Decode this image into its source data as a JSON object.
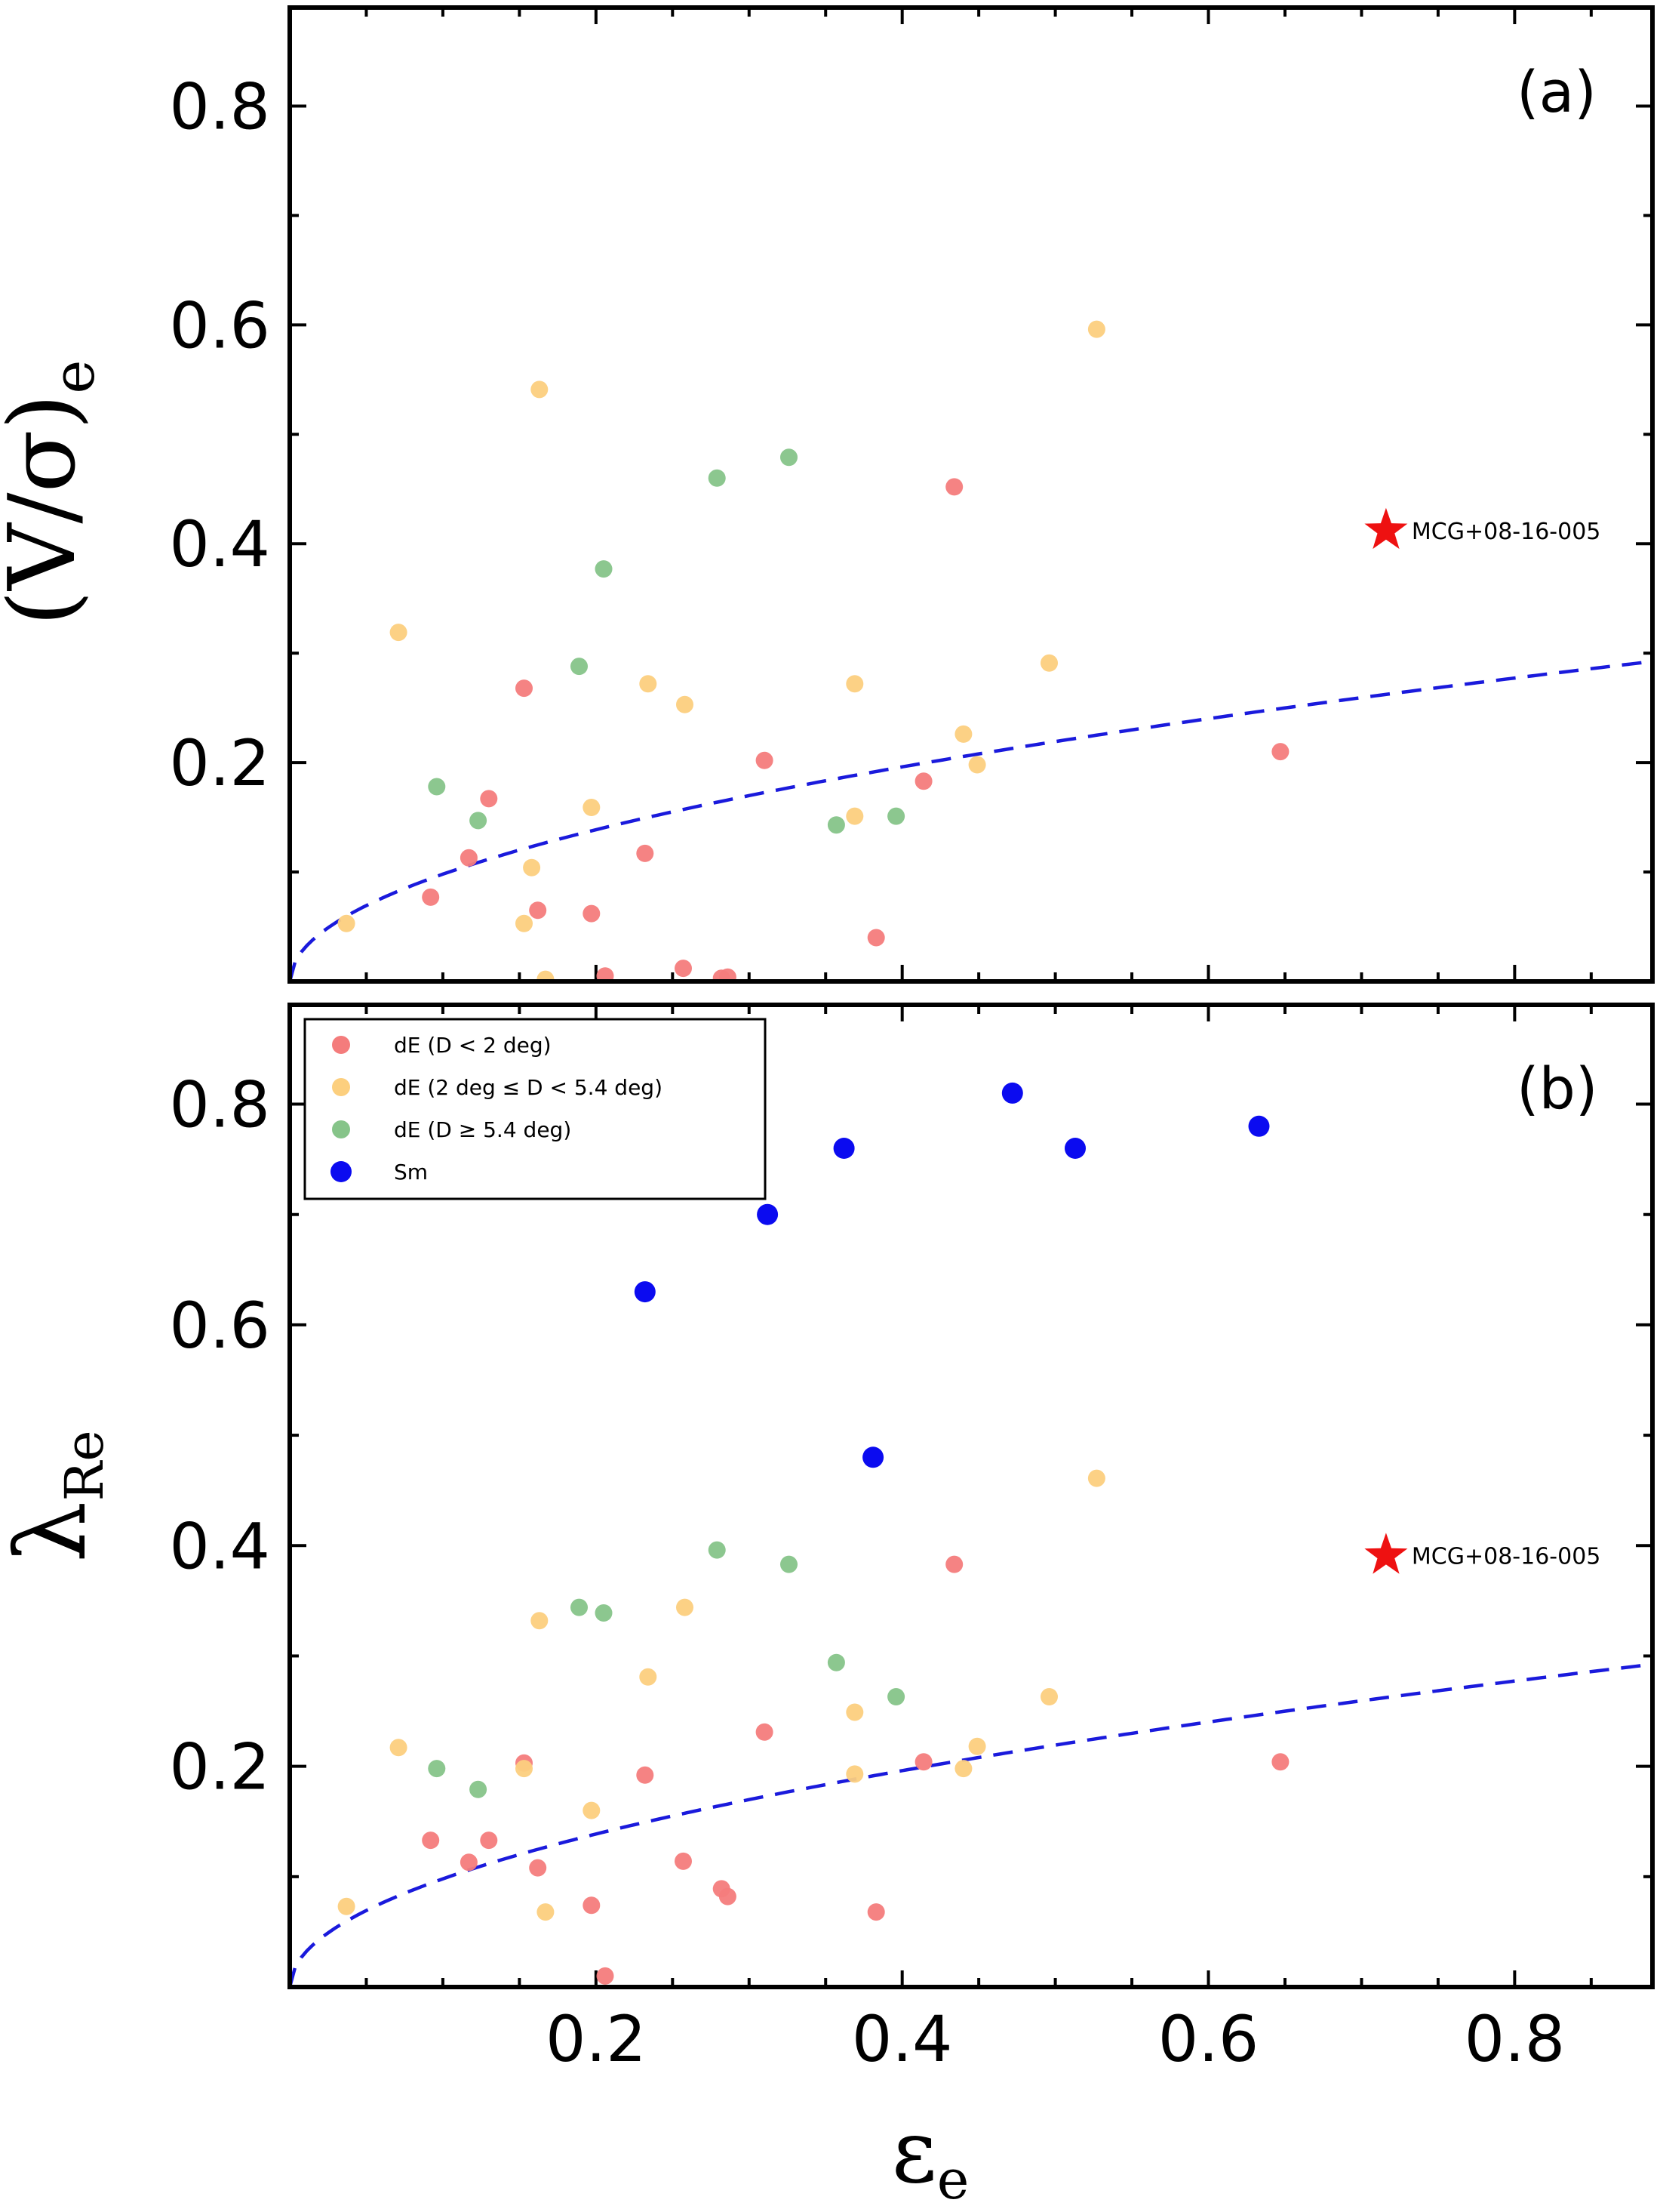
{
  "colors": {
    "red": "#f47c7c",
    "orange": "#fccf7e",
    "green": "#86c489",
    "blue": "#0b0bf0",
    "star": "#ee1111",
    "line": "#1a1adc"
  },
  "xaxis": {
    "label_base": "ε",
    "label_sub": "e",
    "ticks": [
      0.2,
      0.4,
      0.6,
      0.8
    ],
    "tick_labels": [
      "0.2",
      "0.4",
      "0.6",
      "0.8"
    ],
    "minor_ticks": [
      0.05,
      0.1,
      0.15,
      0.25,
      0.3,
      0.35,
      0.45,
      0.5,
      0.55,
      0.65,
      0.7,
      0.75,
      0.85
    ],
    "range": [
      0,
      0.89
    ]
  },
  "legend": {
    "entries": [
      {
        "label": "dE (D < 2 deg)",
        "color": "red"
      },
      {
        "label": "dE (2 deg ≤ D < 5.4 deg)",
        "color": "orange"
      },
      {
        "label": "dE (D ≥ 5.4 deg)",
        "color": "green"
      },
      {
        "label": "Sm",
        "color": "blue"
      }
    ]
  },
  "chart_data": [
    {
      "type": "scatter",
      "panel_label": "(a)",
      "ylabel": "(V/σ)",
      "ylabel_sub": "e",
      "ylim": [
        0,
        0.89
      ],
      "yticks": [
        0.2,
        0.4,
        0.6,
        0.8
      ],
      "ytick_labels": [
        "0.2",
        "0.4",
        "0.6",
        "0.8"
      ],
      "yminor": [
        0.1,
        0.3,
        0.5,
        0.7
      ],
      "series": [
        {
          "name": "dE (D < 2 deg)",
          "color": "red",
          "points": [
            [
              0.092,
              0.077
            ],
            [
              0.117,
              0.113
            ],
            [
              0.13,
              0.167
            ],
            [
              0.153,
              0.268
            ],
            [
              0.162,
              0.065
            ],
            [
              0.197,
              0.062
            ],
            [
              0.206,
              0.005
            ],
            [
              0.232,
              0.117
            ],
            [
              0.257,
              0.012
            ],
            [
              0.282,
              0.003
            ],
            [
              0.286,
              0.004
            ],
            [
              0.31,
              0.202
            ],
            [
              0.383,
              0.04
            ],
            [
              0.414,
              0.183
            ],
            [
              0.434,
              0.452
            ],
            [
              0.647,
              0.21
            ]
          ]
        },
        {
          "name": "dE (2 deg ≤ D < 5.4 deg)",
          "color": "orange",
          "points": [
            [
              0.037,
              0.053
            ],
            [
              0.071,
              0.319
            ],
            [
              0.153,
              0.053
            ],
            [
              0.158,
              0.104
            ],
            [
              0.163,
              0.541
            ],
            [
              0.167,
              0.002
            ],
            [
              0.197,
              0.159
            ],
            [
              0.234,
              0.272
            ],
            [
              0.258,
              0.253
            ],
            [
              0.369,
              0.151
            ],
            [
              0.369,
              0.272
            ],
            [
              0.44,
              0.226
            ],
            [
              0.449,
              0.198
            ],
            [
              0.496,
              0.291
            ],
            [
              0.527,
              0.596
            ]
          ]
        },
        {
          "name": "dE (D ≥ 5.4 deg)",
          "color": "green",
          "points": [
            [
              0.096,
              0.178
            ],
            [
              0.123,
              0.147
            ],
            [
              0.189,
              0.288
            ],
            [
              0.205,
              0.377
            ],
            [
              0.279,
              0.46
            ],
            [
              0.326,
              0.479
            ],
            [
              0.357,
              0.143
            ],
            [
              0.396,
              0.151
            ]
          ]
        }
      ],
      "star": {
        "label": "MCG+08-16-005",
        "x": 0.716,
        "y": 0.412
      },
      "curve": {
        "name": "dashed curve",
        "k": 0.31
      }
    },
    {
      "type": "scatter",
      "panel_label": "(b)",
      "ylabel": "λ",
      "ylabel_sub": "Re",
      "ylim": [
        0,
        0.89
      ],
      "yticks": [
        0.2,
        0.4,
        0.6,
        0.8
      ],
      "ytick_labels": [
        "0.2",
        "0.4",
        "0.6",
        "0.8"
      ],
      "yminor": [
        0.1,
        0.3,
        0.5,
        0.7
      ],
      "series": [
        {
          "name": "dE (D < 2 deg)",
          "color": "red",
          "points": [
            [
              0.092,
              0.133
            ],
            [
              0.117,
              0.113
            ],
            [
              0.13,
              0.133
            ],
            [
              0.153,
              0.203
            ],
            [
              0.162,
              0.108
            ],
            [
              0.197,
              0.074
            ],
            [
              0.206,
              0.01
            ],
            [
              0.232,
              0.192
            ],
            [
              0.257,
              0.114
            ],
            [
              0.282,
              0.089
            ],
            [
              0.286,
              0.082
            ],
            [
              0.31,
              0.231
            ],
            [
              0.383,
              0.068
            ],
            [
              0.414,
              0.204
            ],
            [
              0.434,
              0.383
            ],
            [
              0.647,
              0.204
            ]
          ]
        },
        {
          "name": "dE (2 deg ≤ D < 5.4 deg)",
          "color": "orange",
          "points": [
            [
              0.037,
              0.073
            ],
            [
              0.071,
              0.217
            ],
            [
              0.153,
              0.198
            ],
            [
              0.163,
              0.332
            ],
            [
              0.167,
              0.068
            ],
            [
              0.197,
              0.16
            ],
            [
              0.234,
              0.281
            ],
            [
              0.258,
              0.344
            ],
            [
              0.369,
              0.249
            ],
            [
              0.369,
              0.193
            ],
            [
              0.44,
              0.198
            ],
            [
              0.449,
              0.218
            ],
            [
              0.496,
              0.263
            ],
            [
              0.527,
              0.461
            ]
          ]
        },
        {
          "name": "dE (D ≥ 5.4 deg)",
          "color": "green",
          "points": [
            [
              0.096,
              0.198
            ],
            [
              0.123,
              0.179
            ],
            [
              0.189,
              0.344
            ],
            [
              0.205,
              0.339
            ],
            [
              0.279,
              0.396
            ],
            [
              0.326,
              0.383
            ],
            [
              0.357,
              0.294
            ],
            [
              0.396,
              0.263
            ]
          ]
        },
        {
          "name": "Sm",
          "color": "blue",
          "points": [
            [
              0.232,
              0.63
            ],
            [
              0.312,
              0.7
            ],
            [
              0.362,
              0.76
            ],
            [
              0.381,
              0.48
            ],
            [
              0.472,
              0.81
            ],
            [
              0.513,
              0.76
            ],
            [
              0.633,
              0.78
            ]
          ]
        }
      ],
      "star": {
        "label": "MCG+08-16-005",
        "x": 0.716,
        "y": 0.391
      },
      "curve": {
        "name": "dashed curve",
        "k": 0.31
      }
    }
  ]
}
